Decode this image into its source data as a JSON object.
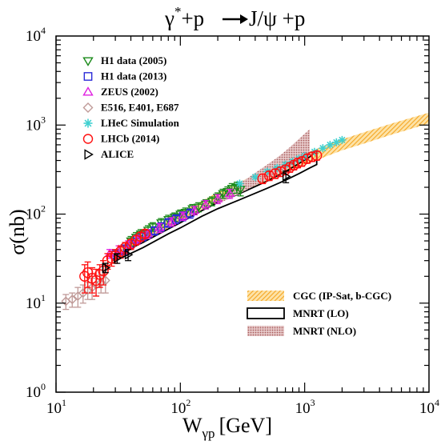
{
  "chart_data": {
    "type": "scatter",
    "title": "γ*+p → J/ψ +p",
    "title_parts": {
      "gamma": "γ",
      "star": "*",
      "mid": "+p",
      "psi": "J/ψ +p"
    },
    "xlabel": "W",
    "xlabel_sub": "γp",
    "xlabel_unit": "[GeV]",
    "ylabel": "σ(nb)",
    "x_scale": "log",
    "y_scale": "log",
    "xlim": [
      10,
      10000
    ],
    "ylim": [
      1,
      10000
    ],
    "x_ticks": [
      {
        "base": "10",
        "exp": "1",
        "value": 10
      },
      {
        "base": "10",
        "exp": "2",
        "value": 100
      },
      {
        "base": "10",
        "exp": "3",
        "value": 1000
      },
      {
        "base": "10",
        "exp": "4",
        "value": 10000
      }
    ],
    "y_ticks": [
      {
        "base": "10",
        "exp": "0",
        "value": 1
      },
      {
        "base": "10",
        "exp": "1",
        "value": 10
      },
      {
        "base": "10",
        "exp": "2",
        "value": 100
      },
      {
        "base": "10",
        "exp": "3",
        "value": 1000
      },
      {
        "base": "10",
        "exp": "4",
        "value": 10000
      }
    ],
    "grid": false,
    "legend_placement": "top-left",
    "series": [
      {
        "name": "H1 data (2005)",
        "marker": "triangle-down",
        "color": "#1a8a1a",
        "points": [
          [
            40,
            50
          ],
          [
            44,
            55
          ],
          [
            48,
            60
          ],
          [
            55,
            66
          ],
          [
            60,
            72
          ],
          [
            70,
            80
          ],
          [
            80,
            87
          ],
          [
            90,
            93
          ],
          [
            100,
            100
          ],
          [
            110,
            105
          ],
          [
            125,
            115
          ],
          [
            140,
            120
          ],
          [
            160,
            130
          ],
          [
            180,
            140
          ],
          [
            200,
            155
          ],
          [
            220,
            170
          ],
          [
            240,
            180
          ],
          [
            260,
            195
          ],
          [
            285,
            200
          ],
          [
            305,
            190
          ]
        ],
        "err": [
          6,
          7,
          7,
          8,
          8,
          9,
          10,
          10,
          11,
          12,
          13,
          14,
          15,
          16,
          18,
          20,
          22,
          25,
          28,
          30
        ]
      },
      {
        "name": "H1 data (2013)",
        "marker": "square",
        "color": "#2a2ad8",
        "points": [
          [
            30,
            35
          ],
          [
            35,
            40
          ],
          [
            40,
            46
          ],
          [
            45,
            52
          ],
          [
            50,
            56
          ],
          [
            55,
            60
          ],
          [
            62,
            65
          ],
          [
            70,
            72
          ],
          [
            80,
            80
          ],
          [
            92,
            88
          ],
          [
            105,
            95
          ],
          [
            120,
            102
          ]
        ],
        "err": [
          4,
          5,
          5,
          6,
          6,
          7,
          7,
          8,
          9,
          10,
          11,
          12
        ]
      },
      {
        "name": "ZEUS (2002)",
        "marker": "triangle-up",
        "color": "#e020e0",
        "points": [
          [
            27,
            36
          ],
          [
            32,
            40
          ],
          [
            38,
            45
          ],
          [
            45,
            52
          ],
          [
            55,
            60
          ],
          [
            68,
            70
          ],
          [
            85,
            82
          ],
          [
            105,
            95
          ],
          [
            130,
            110
          ],
          [
            160,
            128
          ],
          [
            200,
            148
          ],
          [
            250,
            170
          ]
        ],
        "err": [
          4,
          4,
          5,
          6,
          7,
          8,
          9,
          10,
          12,
          14,
          17,
          20
        ]
      },
      {
        "name": "E516, E401, E687",
        "marker": "diamond",
        "color": "#c09a98",
        "points": [
          [
            12,
            10.5
          ],
          [
            13.5,
            11
          ],
          [
            15,
            12
          ],
          [
            16.5,
            13
          ],
          [
            18,
            14
          ],
          [
            19.5,
            15
          ],
          [
            21,
            16
          ],
          [
            23,
            17
          ],
          [
            25,
            18
          ]
        ],
        "err": [
          2,
          2,
          3,
          3,
          3,
          4,
          4,
          4,
          5
        ]
      },
      {
        "name": "LHeC Simulation",
        "marker": "asterisk",
        "color": "#40d0d0",
        "points": [
          [
            300,
            220
          ],
          [
            400,
            260
          ],
          [
            500,
            300
          ],
          [
            600,
            330
          ],
          [
            700,
            360
          ],
          [
            800,
            390
          ],
          [
            900,
            420
          ],
          [
            1000,
            450
          ],
          [
            1200,
            500
          ],
          [
            1400,
            550
          ],
          [
            1600,
            600
          ],
          [
            1800,
            640
          ],
          [
            2000,
            680
          ]
        ],
        "err": [
          0,
          0,
          0,
          0,
          0,
          0,
          0,
          0,
          0,
          0,
          0,
          0,
          0
        ]
      },
      {
        "name": "LHCb (2014)",
        "marker": "circle",
        "color": "#ff1010",
        "points": [
          [
            17,
            20
          ],
          [
            18,
            22
          ],
          [
            19.5,
            19
          ],
          [
            21,
            18
          ],
          [
            22.5,
            21
          ],
          [
            24,
            23
          ],
          [
            26,
            30
          ],
          [
            28,
            32
          ],
          [
            30,
            34
          ],
          [
            33,
            38
          ],
          [
            36,
            42
          ],
          [
            40,
            46
          ],
          [
            44,
            51
          ],
          [
            48,
            56
          ],
          [
            52,
            60
          ],
          [
            460,
            250
          ],
          [
            520,
            270
          ],
          [
            580,
            285
          ],
          [
            640,
            300
          ],
          [
            700,
            315
          ],
          [
            760,
            335
          ],
          [
            820,
            355
          ],
          [
            880,
            375
          ],
          [
            950,
            390
          ],
          [
            1050,
            420
          ],
          [
            1150,
            440
          ],
          [
            1250,
            455
          ]
        ],
        "err": [
          7,
          7,
          6,
          6,
          6,
          7,
          6,
          6,
          6,
          6,
          6,
          6,
          6,
          6,
          6,
          30,
          32,
          34,
          36,
          38,
          40,
          42,
          44,
          46,
          48,
          50,
          52
        ]
      },
      {
        "name": "ALICE",
        "marker": "triangle-right",
        "color": "#000000",
        "points": [
          [
            25,
            25
          ],
          [
            31,
            32
          ],
          [
            38,
            35
          ],
          [
            706,
            265
          ]
        ],
        "err": [
          3,
          4,
          5,
          40
        ]
      }
    ],
    "bands": [
      {
        "name": "CGC (IP-Sat, b-CGC)",
        "style": "orange-hatch",
        "color": "#f5a623",
        "x": [
          30,
          50,
          80,
          100,
          200,
          300,
          500,
          800,
          1000,
          2000,
          3000,
          5000,
          8000,
          10000
        ],
        "lower": [
          32,
          48,
          70,
          82,
          135,
          175,
          240,
          320,
          360,
          520,
          620,
          780,
          950,
          1040
        ],
        "upper": [
          40,
          60,
          88,
          105,
          175,
          230,
          315,
          420,
          480,
          690,
          830,
          1040,
          1260,
          1380
        ]
      },
      {
        "name": "MNRT (LO)",
        "style": "outline",
        "color": "#000000",
        "x": [
          30,
          50,
          80,
          100,
          150,
          200,
          300,
          500,
          700,
          900,
          1100,
          1250
        ],
        "lower": [
          30,
          42,
          60,
          70,
          95,
          115,
          145,
          195,
          240,
          285,
          330,
          360
        ],
        "upper": [
          34,
          48,
          68,
          80,
          110,
          135,
          170,
          235,
          300,
          370,
          440,
          520
        ]
      },
      {
        "name": "MNRT (NLO)",
        "style": "brown-hatch",
        "color": "#a85c5c",
        "x": [
          200,
          300,
          400,
          500,
          600,
          700,
          800,
          900,
          1000,
          1100
        ],
        "lower": [
          130,
          170,
          210,
          245,
          280,
          315,
          350,
          390,
          420,
          450
        ],
        "upper": [
          150,
          220,
          290,
          360,
          430,
          510,
          600,
          700,
          800,
          900
        ]
      }
    ],
    "band_legend": [
      "CGC (IP-Sat, b-CGC)",
      "MNRT (LO)",
      "MNRT (NLO)"
    ]
  }
}
